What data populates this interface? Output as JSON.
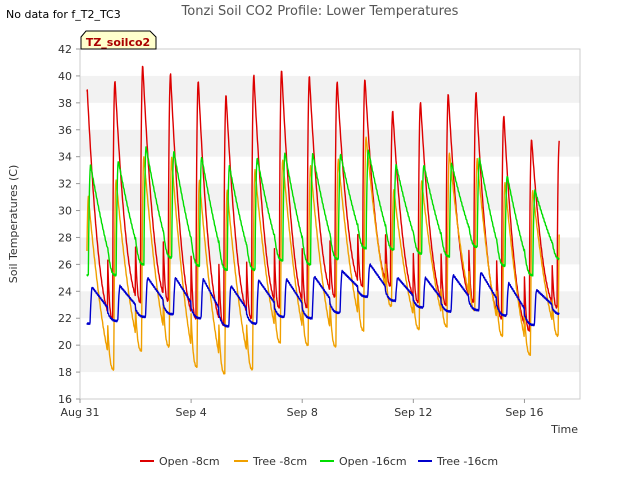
{
  "header": {
    "no_data_note": "No data for f_T2_TC3"
  },
  "tag_label": "TZ_soilco2",
  "chart_data": {
    "type": "line",
    "title": "Tonzi Soil CO2 Profile: Lower Temperatures",
    "xlabel": "Time",
    "ylabel": "Soil Temperatures (C)",
    "ylim": [
      16,
      42
    ],
    "yticks": [
      16,
      18,
      20,
      22,
      24,
      26,
      28,
      30,
      32,
      34,
      36,
      38,
      40,
      42
    ],
    "xlim_days": [
      0,
      18
    ],
    "xticks": [
      {
        "day": 0,
        "label": "Aug 31"
      },
      {
        "day": 4,
        "label": "Sep 4"
      },
      {
        "day": 8,
        "label": "Sep 8"
      },
      {
        "day": 12,
        "label": "Sep 12"
      },
      {
        "day": 16,
        "label": "Sep 16"
      }
    ],
    "grid": "horizontal alternating bands",
    "legend_placement": "bottom",
    "series": [
      {
        "name": "Open -8cm",
        "color": "#dd0000",
        "max": [
          39.0,
          39.7,
          40.8,
          40.2,
          39.7,
          38.6,
          40.1,
          40.5,
          40.0,
          39.6,
          39.8,
          37.4,
          38.1,
          38.7,
          38.8,
          37.1,
          35.3
        ],
        "min": [
          21.9,
          22.0,
          23.2,
          23.3,
          22.0,
          21.5,
          22.0,
          22.8,
          22.8,
          23.6,
          24.4,
          24.4,
          23.2,
          23.0,
          23.2,
          22.0,
          21.1,
          22.8
        ]
      },
      {
        "name": "Tree -8cm",
        "color": "#f0a000",
        "max": [
          31.0,
          32.3,
          34.0,
          33.9,
          32.3,
          31.5,
          33.0,
          33.8,
          33.3,
          33.8,
          35.5,
          31.5,
          32.2,
          34.3,
          33.8,
          32.1,
          31.5
        ],
        "min": [
          17.8,
          18.2,
          19.6,
          19.9,
          18.4,
          17.9,
          18.2,
          20.2,
          20.0,
          19.9,
          21.1,
          22.9,
          21.2,
          21.4,
          22.6,
          20.7,
          19.3,
          20.7
        ]
      },
      {
        "name": "Open -16cm",
        "color": "#00dd00",
        "max": [
          33.4,
          33.7,
          34.7,
          34.4,
          34.0,
          33.3,
          33.9,
          34.3,
          34.2,
          34.2,
          34.5,
          33.4,
          33.4,
          33.5,
          33.9,
          32.6,
          31.5
        ],
        "min": [
          25.2,
          25.2,
          26.0,
          26.5,
          25.9,
          25.6,
          25.6,
          26.3,
          26.0,
          26.4,
          27.2,
          27.1,
          26.8,
          26.6,
          27.3,
          25.9,
          25.2,
          26.4
        ]
      },
      {
        "name": "Tree -16cm",
        "color": "#0000cc",
        "max": [
          24.3,
          24.4,
          25.0,
          25.0,
          24.9,
          24.4,
          24.8,
          24.9,
          25.1,
          25.5,
          26.0,
          25.0,
          25.0,
          25.2,
          25.4,
          24.6,
          24.1
        ],
        "min": [
          21.6,
          21.8,
          22.1,
          22.3,
          22.0,
          21.4,
          21.6,
          22.1,
          22.0,
          22.4,
          23.6,
          23.3,
          22.8,
          22.5,
          22.6,
          22.2,
          21.5,
          22.3
        ]
      }
    ]
  }
}
